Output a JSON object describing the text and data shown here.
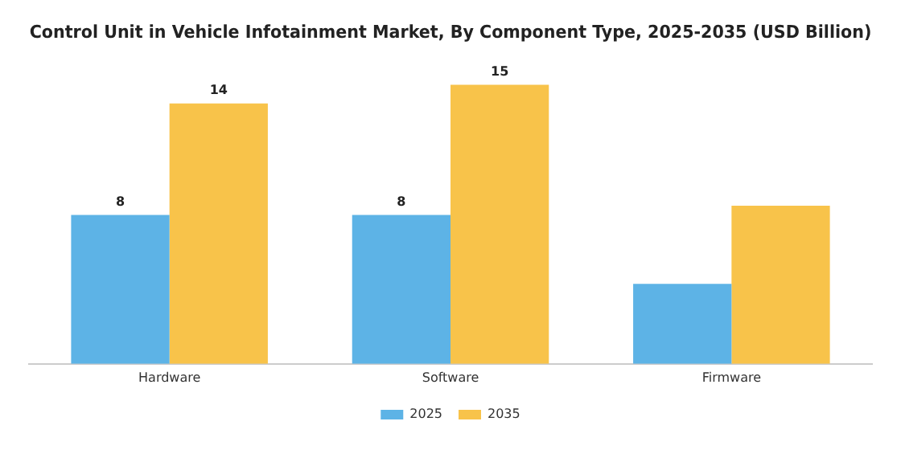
{
  "chart_data": {
    "type": "bar",
    "title": "Control Unit in Vehicle Infotainment Market, By Component Type, 2025-2035 (USD Billion)",
    "categories": [
      "Hardware",
      "Software",
      "Firmware"
    ],
    "series": [
      {
        "name": "2025",
        "color": "#5db3e6",
        "values": [
          8,
          8,
          4.3
        ],
        "value_labels": [
          "8",
          "8",
          null
        ]
      },
      {
        "name": "2035",
        "color": "#f8c34a",
        "values": [
          14,
          15,
          8.5
        ],
        "value_labels": [
          "14",
          "15",
          null
        ]
      }
    ],
    "grid": false,
    "legend": "bottom"
  }
}
